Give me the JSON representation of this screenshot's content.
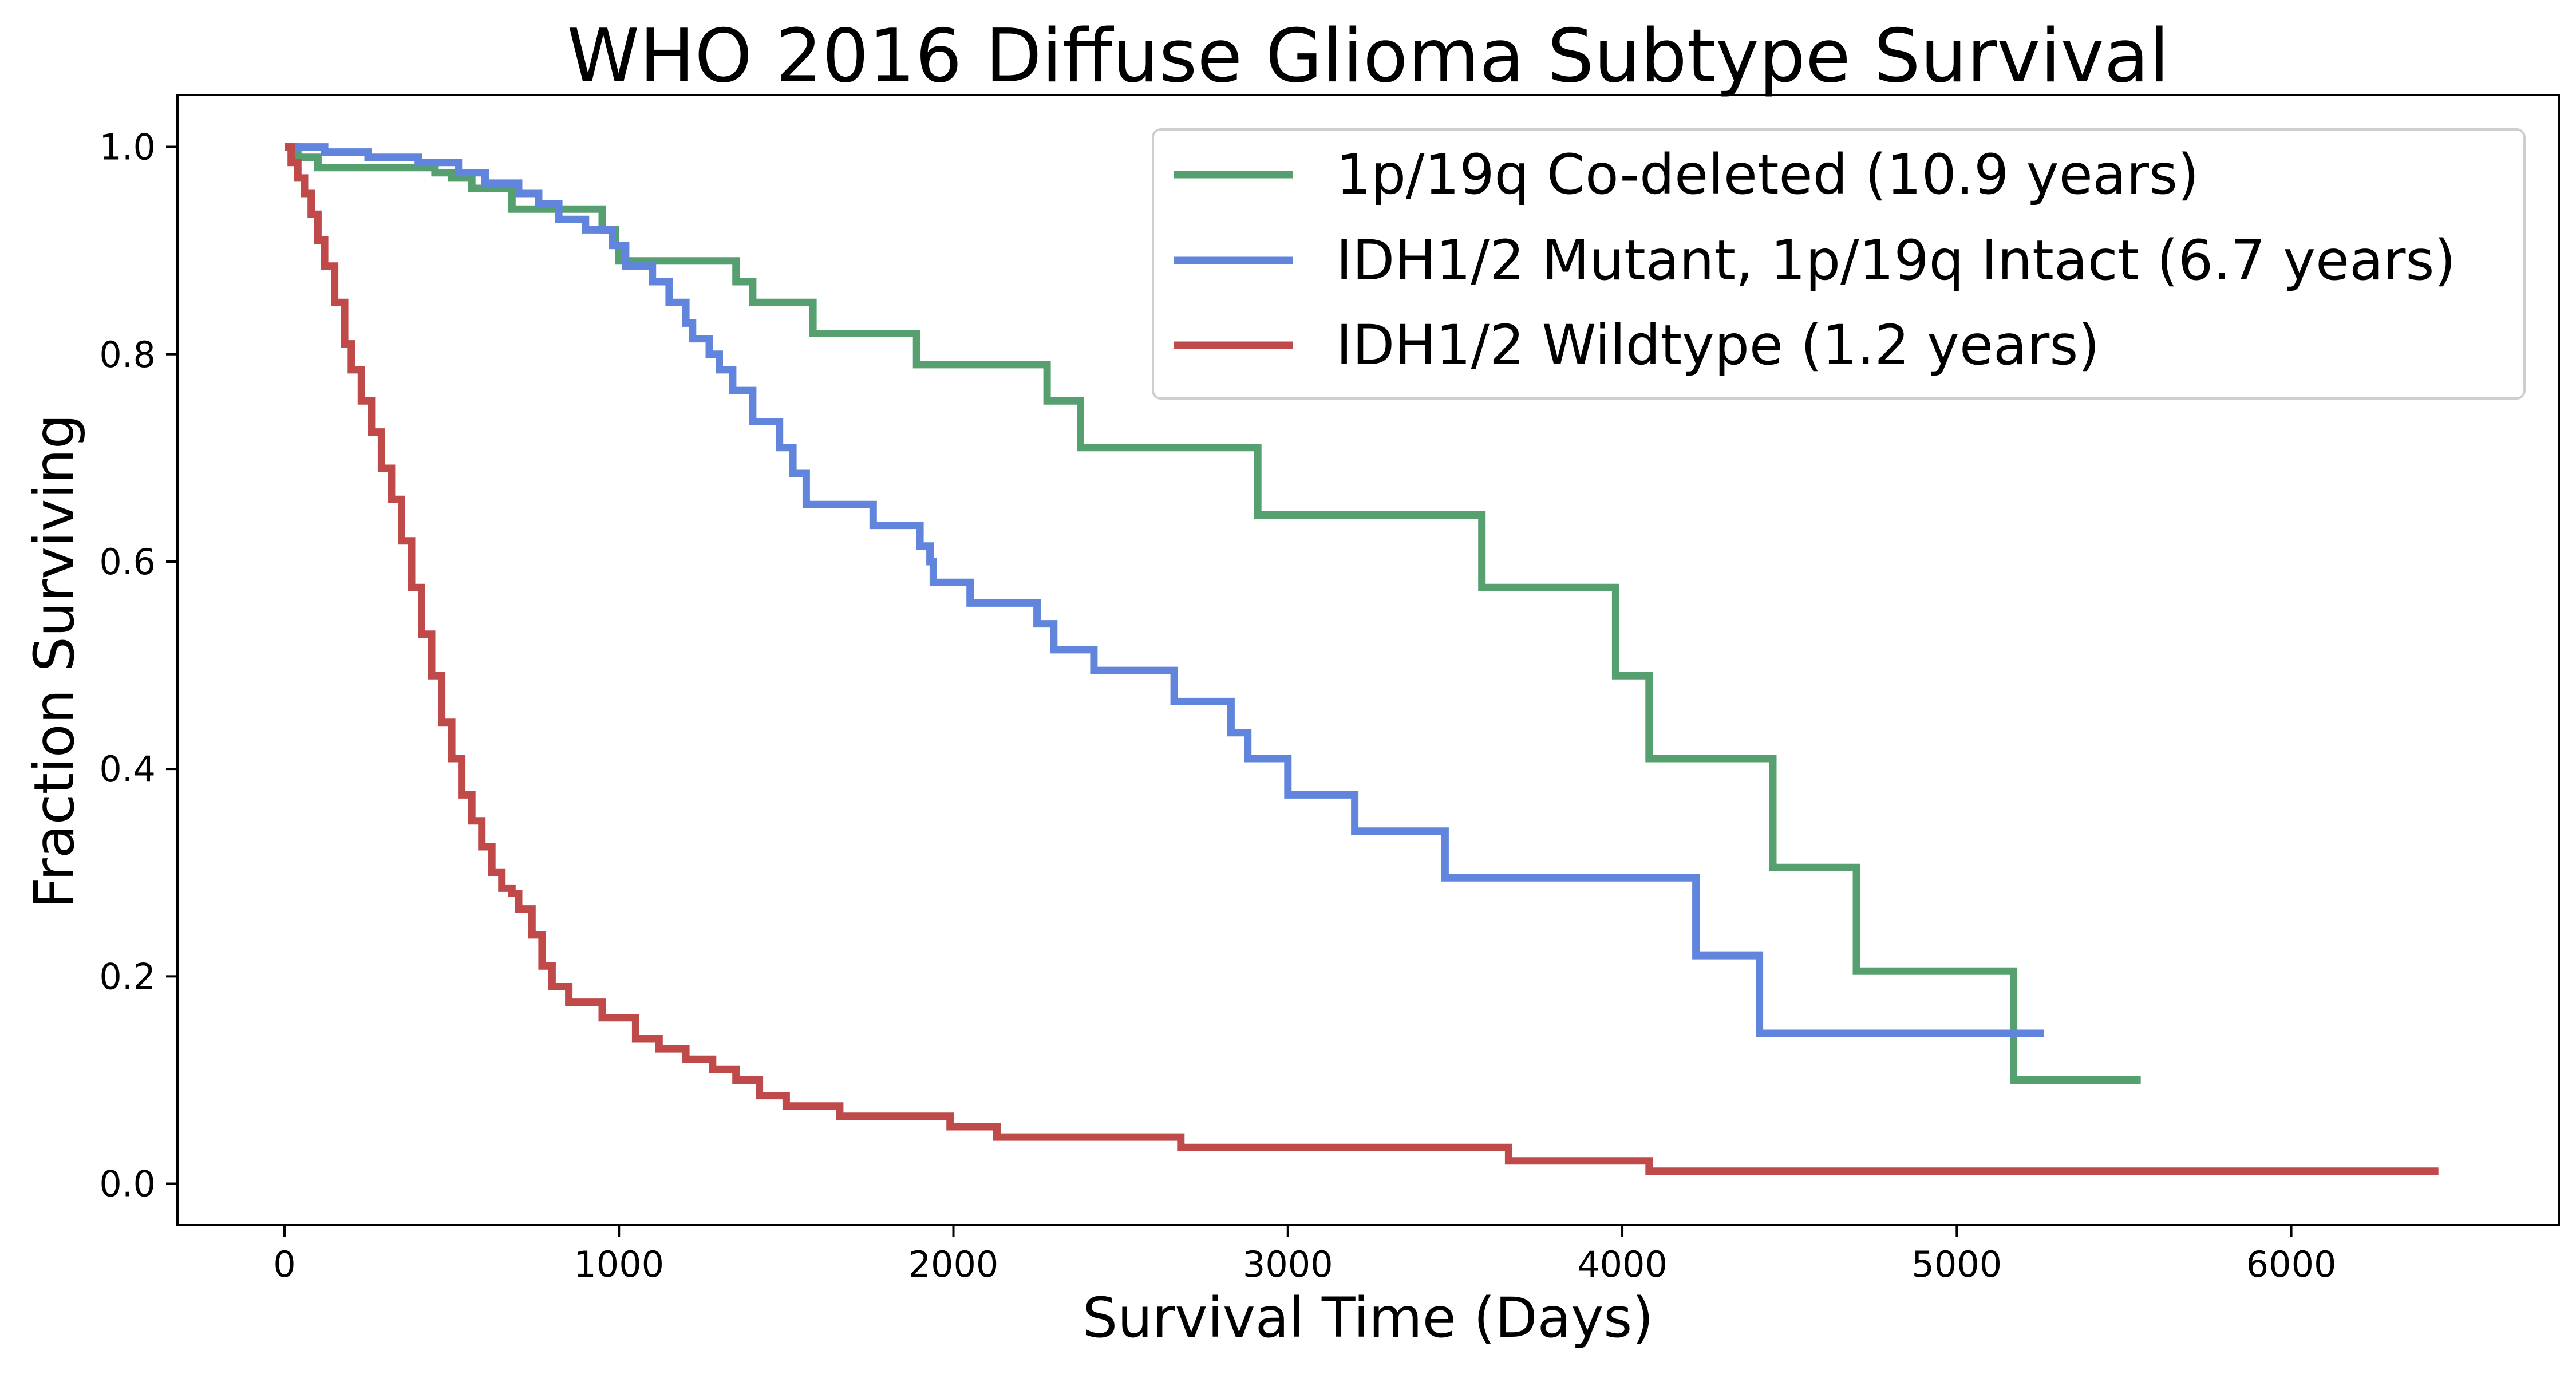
{
  "chart_data": {
    "type": "line",
    "step": true,
    "title": "WHO 2016 Diffuse Glioma Subtype Survival",
    "xlabel": "Survival Time (Days)",
    "ylabel": "Fraction Surviving",
    "xlim": [
      -320,
      6800
    ],
    "ylim": [
      -0.04,
      1.05
    ],
    "xticks": [
      0,
      1000,
      2000,
      3000,
      4000,
      5000,
      6000
    ],
    "xtick_labels": [
      "0",
      "1000",
      "2000",
      "3000",
      "4000",
      "5000",
      "6000"
    ],
    "yticks": [
      0.0,
      0.2,
      0.4,
      0.6,
      0.8,
      1.0
    ],
    "ytick_labels": [
      "0.0",
      "0.2",
      "0.4",
      "0.6",
      "0.8",
      "1.0"
    ],
    "grid": false,
    "legend_position": "top-right",
    "series": [
      {
        "name": "1p/19q Co-deleted (10.9 years)",
        "color": "#55a06e",
        "x": [
          0,
          40,
          100,
          450,
          500,
          560,
          680,
          950,
          990,
          1000,
          1350,
          1400,
          1580,
          1890,
          2280,
          2380,
          2910,
          3580,
          3980,
          4080,
          4450,
          4700,
          5170,
          5550
        ],
        "y": [
          1.0,
          0.99,
          0.98,
          0.975,
          0.97,
          0.96,
          0.94,
          0.92,
          0.905,
          0.89,
          0.87,
          0.85,
          0.82,
          0.79,
          0.755,
          0.71,
          0.645,
          0.575,
          0.49,
          0.41,
          0.305,
          0.205,
          0.1,
          0.1
        ]
      },
      {
        "name": "IDH1/2 Mutant, 1p/19q Intact (6.7 years)",
        "color": "#6185dc",
        "x": [
          0,
          120,
          250,
          400,
          520,
          600,
          700,
          760,
          820,
          900,
          980,
          1020,
          1100,
          1150,
          1200,
          1220,
          1270,
          1300,
          1340,
          1400,
          1480,
          1520,
          1560,
          1760,
          1900,
          1930,
          1940,
          2050,
          2250,
          2300,
          2420,
          2660,
          2830,
          2880,
          2910,
          3000,
          3200,
          3470,
          4220,
          4410,
          5260
        ],
        "y": [
          1.0,
          0.995,
          0.99,
          0.985,
          0.975,
          0.965,
          0.955,
          0.945,
          0.93,
          0.92,
          0.905,
          0.885,
          0.87,
          0.85,
          0.83,
          0.815,
          0.8,
          0.785,
          0.765,
          0.735,
          0.71,
          0.685,
          0.655,
          0.635,
          0.615,
          0.6,
          0.58,
          0.56,
          0.54,
          0.515,
          0.495,
          0.465,
          0.435,
          0.41,
          0.41,
          0.375,
          0.34,
          0.295,
          0.22,
          0.145,
          0.145
        ],
        "color_note": "blue"
      },
      {
        "name": "IDH1/2 Wildtype (1.2 years)",
        "color": "#c04a4a",
        "x": [
          0,
          20,
          40,
          60,
          80,
          100,
          120,
          150,
          180,
          200,
          230,
          260,
          290,
          320,
          350,
          380,
          410,
          440,
          470,
          500,
          530,
          560,
          590,
          620,
          650,
          680,
          700,
          740,
          770,
          800,
          850,
          950,
          1050,
          1120,
          1200,
          1280,
          1350,
          1420,
          1500,
          1660,
          1990,
          2130,
          2680,
          3660,
          4080,
          6440
        ],
        "y": [
          1.0,
          0.985,
          0.97,
          0.955,
          0.935,
          0.91,
          0.885,
          0.85,
          0.81,
          0.785,
          0.755,
          0.725,
          0.69,
          0.66,
          0.62,
          0.575,
          0.53,
          0.49,
          0.445,
          0.41,
          0.375,
          0.35,
          0.325,
          0.3,
          0.285,
          0.28,
          0.265,
          0.24,
          0.21,
          0.19,
          0.175,
          0.16,
          0.14,
          0.13,
          0.12,
          0.11,
          0.1,
          0.085,
          0.075,
          0.065,
          0.055,
          0.045,
          0.035,
          0.022,
          0.012,
          0.012
        ]
      }
    ]
  }
}
